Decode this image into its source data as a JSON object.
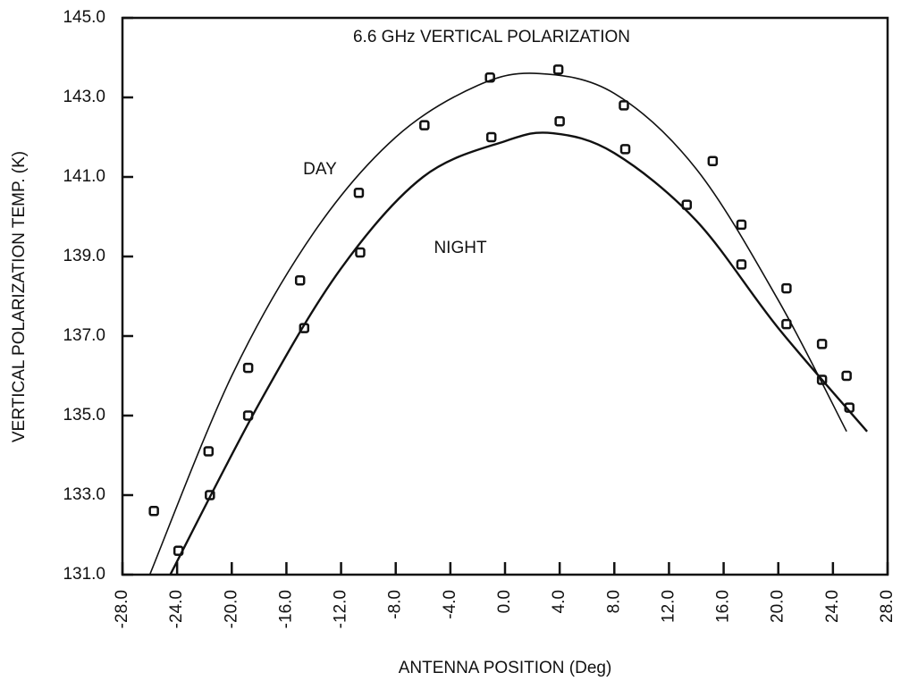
{
  "chart_data": {
    "type": "scatter",
    "title": "6.6 GHz VERTICAL POLARIZATION",
    "x_label": "ANTENNA POSITION (Deg)",
    "y_label": "VERTICAL POLARIZATION TEMP. (K)",
    "annotations": [
      "DAY",
      "NIGHT"
    ],
    "xlim": [
      -28,
      28
    ],
    "ylim": [
      131,
      145
    ],
    "xticks": [
      {
        "value": -28,
        "label": "-28.0"
      },
      {
        "value": -24,
        "label": "-24.0"
      },
      {
        "value": -20,
        "label": "-20.0"
      },
      {
        "value": -16,
        "label": "-16.0"
      },
      {
        "value": -12,
        "label": "-12.0"
      },
      {
        "value": -8,
        "label": "-8.0"
      },
      {
        "value": -4,
        "label": "-4.0"
      },
      {
        "value": 0,
        "label": "0.0"
      },
      {
        "value": 4,
        "label": "4.0"
      },
      {
        "value": 8,
        "label": "8.0"
      },
      {
        "value": 12,
        "label": "12.0"
      },
      {
        "value": 16,
        "label": "16.0"
      },
      {
        "value": 20,
        "label": "20.0"
      },
      {
        "value": 24,
        "label": "24.0"
      },
      {
        "value": 28,
        "label": "28.0"
      }
    ],
    "yticks": [
      {
        "value": 131,
        "label": "131.0"
      },
      {
        "value": 133,
        "label": "133.0"
      },
      {
        "value": 135,
        "label": "135.0"
      },
      {
        "value": 137,
        "label": "137.0"
      },
      {
        "value": 139,
        "label": "139.0"
      },
      {
        "value": 141,
        "label": "141.0"
      },
      {
        "value": 143,
        "label": "143.0"
      },
      {
        "value": 145,
        "label": "145.0"
      }
    ],
    "color": "#111111",
    "series": [
      {
        "kind": "points",
        "x": [
          -25.7,
          -21.7,
          -18.8,
          -15.0,
          -10.7,
          -5.9,
          -1.1,
          3.9,
          8.7,
          15.2,
          17.3,
          20.6,
          23.2,
          25.0
        ],
        "values": [
          132.6,
          134.1,
          136.2,
          138.4,
          140.6,
          142.3,
          143.5,
          143.7,
          142.8,
          141.4,
          139.8,
          138.2,
          136.8,
          136.0
        ]
      },
      {
        "kind": "points",
        "x": [
          -23.9,
          -21.6,
          -18.8,
          -14.7,
          -10.6,
          -1.0,
          4.0,
          8.8,
          13.3,
          17.3,
          20.6,
          23.2,
          25.2
        ],
        "values": [
          131.6,
          133.0,
          135.0,
          137.2,
          139.1,
          142.0,
          142.4,
          141.7,
          140.3,
          138.8,
          137.3,
          135.9,
          135.2
        ]
      },
      {
        "kind": "curve",
        "x": [
          -26,
          -20,
          -14,
          -8,
          -2,
          2.5,
          8,
          14,
          20,
          25
        ],
        "values": [
          131.0,
          136.0,
          139.6,
          142.0,
          143.3,
          143.6,
          143.1,
          141.2,
          137.9,
          134.6
        ]
      },
      {
        "kind": "curve",
        "x": [
          -24.5,
          -18,
          -12,
          -6,
          0,
          3.5,
          8,
          14,
          20,
          26.5
        ],
        "values": [
          131.0,
          135.3,
          138.7,
          141.0,
          141.9,
          142.1,
          141.6,
          139.9,
          137.2,
          134.6
        ]
      }
    ]
  }
}
